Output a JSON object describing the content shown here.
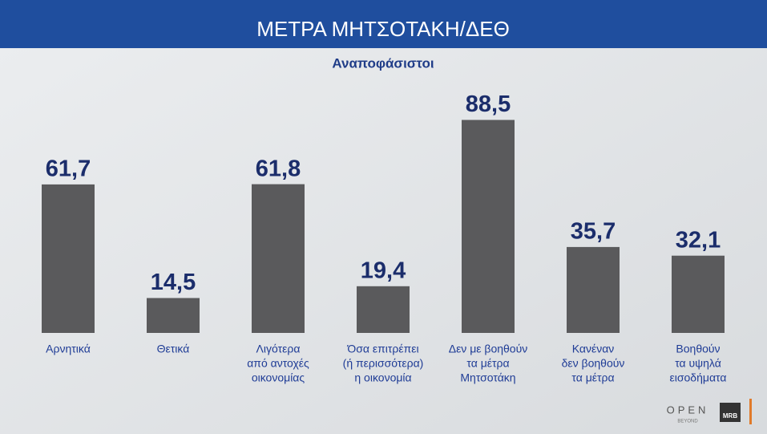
{
  "chart_data": {
    "type": "bar",
    "title": "ΜΕΤΡΑ ΜΗΤΣΟΤΑΚΗ/ΔΕΘ",
    "subtitle": "Αναποφάσιστοι",
    "categories": [
      [
        "Αρνητικά"
      ],
      [
        "Θετικά"
      ],
      [
        "Λιγότερα",
        "από αντοχές",
        "οικονομίας"
      ],
      [
        "Όσα επιτρέπει",
        "(ή περισσότερα)",
        "η οικονομία"
      ],
      [
        "Δεν με βοηθούν",
        "τα μέτρα",
        "Μητσοτάκη"
      ],
      [
        "Κανέναν",
        "δεν βοηθούν",
        "τα μέτρα"
      ],
      [
        "Βοηθούν",
        "τα υψηλά",
        "εισοδήματα"
      ]
    ],
    "values": [
      61.7,
      14.5,
      61.8,
      19.4,
      88.5,
      35.7,
      32.1
    ],
    "value_labels": [
      "61,7",
      "14,5",
      "61,8",
      "19,4",
      "88,5",
      "35,7",
      "32,1"
    ],
    "color": "#5a5a5c",
    "logos": {
      "open": "OPEN",
      "beyond": "BEYOND",
      "mrb": "MRB"
    }
  }
}
